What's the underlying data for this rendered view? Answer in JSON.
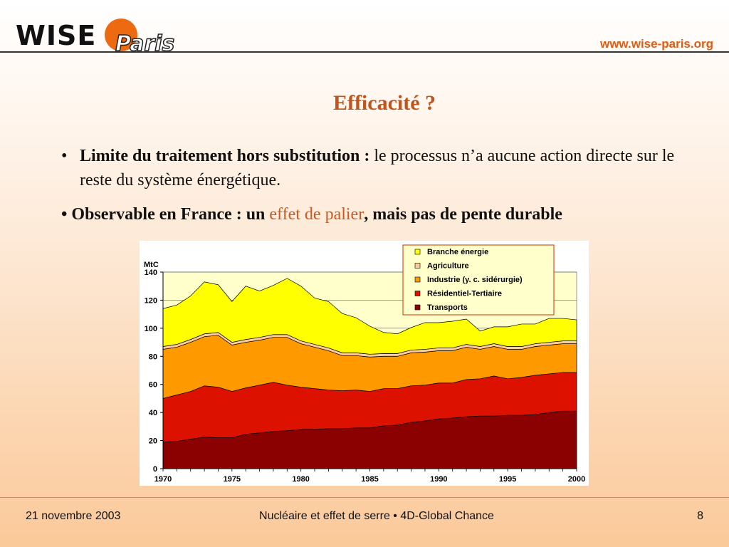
{
  "header": {
    "logo_text": "WISE-Paris",
    "logo_part1": "WISE",
    "logo_part2": "Paris",
    "url": "www.wise-paris.org"
  },
  "slide": {
    "title": "Efficacité ?",
    "bullet1_bold": "Limite du traitement hors substitution :",
    "bullet1_rest": "le processus n’a aucune action directe sur le reste du système énergétique.",
    "bullet2_part1": "Observable en France : un",
    "bullet2_highlight": "effet de palier",
    "bullet2_part3": ", mais pas de pente durable"
  },
  "footer": {
    "date": "21 novembre 2003",
    "center": "Nucléaire et effet de serre • 4D-Global Chance",
    "page": "8"
  },
  "chart_data": {
    "type": "area",
    "stacked": true,
    "ylabel": "MtC",
    "ylim": [
      0,
      140
    ],
    "yticks": [
      0,
      20,
      40,
      60,
      80,
      100,
      120,
      140
    ],
    "xticks": [
      1970,
      1975,
      1980,
      1985,
      1990,
      1995,
      2000
    ],
    "x": [
      1970,
      1971,
      1972,
      1973,
      1974,
      1975,
      1976,
      1977,
      1978,
      1979,
      1980,
      1981,
      1982,
      1983,
      1984,
      1985,
      1986,
      1987,
      1988,
      1989,
      1990,
      1991,
      1992,
      1993,
      1994,
      1995,
      1996,
      1997,
      1998,
      1999,
      2000
    ],
    "legend_position": "top-right",
    "series": [
      {
        "name": "Transports",
        "color": "#8b0000",
        "values": [
          19,
          19.5,
          21,
          22.5,
          22,
          22,
          24.5,
          25.5,
          26.5,
          27,
          28,
          28,
          28.5,
          28.5,
          29,
          29,
          30.5,
          31,
          33,
          34,
          35.5,
          36,
          37,
          37.5,
          37.5,
          38,
          38,
          38.5,
          40,
          41,
          41
        ]
      },
      {
        "name": "Résidentiel-Tertiaire",
        "color": "#dd1100",
        "values": [
          31,
          33,
          34,
          36.5,
          36,
          33,
          33,
          34,
          35,
          32.5,
          30,
          29,
          27.5,
          27,
          27,
          26,
          26.5,
          26,
          26,
          25.5,
          25.5,
          25,
          26.5,
          26.5,
          28.5,
          26,
          27,
          28,
          27.5,
          27.5,
          27.5
        ]
      },
      {
        "name": "Industrie (y. c. sidérurgie)",
        "color": "#ff9900",
        "values": [
          35,
          34,
          35,
          35,
          37,
          33,
          32.5,
          32,
          32,
          34,
          31,
          29.5,
          28,
          25,
          24.5,
          24.5,
          23,
          23,
          23.5,
          23.5,
          23,
          23,
          23,
          21,
          21,
          21,
          20,
          20.5,
          20.5,
          20.5,
          20.5
        ]
      },
      {
        "name": "Agriculture",
        "color": "#ffcc99",
        "values": [
          2,
          2,
          2,
          2,
          2,
          2,
          2,
          2,
          2,
          2,
          2,
          2,
          2,
          2,
          2,
          2,
          2,
          2,
          2,
          2,
          2,
          2,
          2,
          2,
          2,
          2,
          2,
          2,
          2,
          2,
          2
        ]
      },
      {
        "name": "Branche énergie",
        "color": "#ffff00",
        "values": [
          27,
          28,
          31,
          37,
          34,
          29,
          38,
          33,
          35,
          40,
          39,
          33,
          33,
          28,
          25,
          20,
          15,
          14,
          16,
          19,
          18,
          19,
          18,
          11,
          12,
          14,
          16,
          14,
          17,
          16,
          15
        ]
      }
    ]
  }
}
